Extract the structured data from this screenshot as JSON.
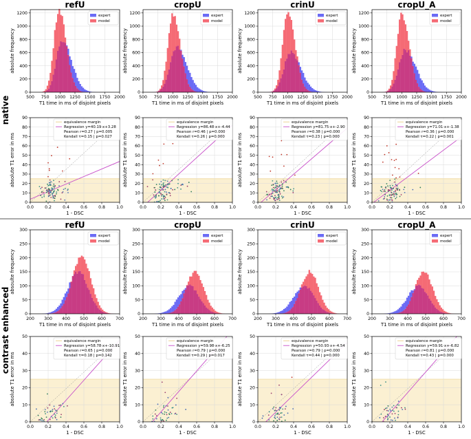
{
  "row_labels": [
    "native",
    "contrast enhanced"
  ],
  "colors": {
    "expert": "#6b6bf5",
    "model": "#f56b75",
    "overlap": "#c83c84",
    "margin": "#fbf0d2",
    "margin_line": "#e8c97a",
    "regression": "#c84fc9",
    "identity": "#8d8d8d",
    "grid": "#d9d9d9"
  },
  "chart_data": [
    {
      "type": "bar",
      "title": "refU",
      "panel": "native-hist",
      "xlabel": "T1 time in ms of disjoint pixels",
      "ylabel": "absolute frequency",
      "xlim": [
        500,
        2000
      ],
      "ylim": [
        0,
        1250
      ],
      "xticks": [
        500,
        750,
        1000,
        1250,
        1500,
        1750,
        2000
      ],
      "yticks": [
        0,
        200,
        400,
        600,
        800,
        1000,
        1200
      ],
      "legend": [
        "expert",
        "model"
      ],
      "peak": 1000,
      "series": [
        {
          "name": "expert",
          "peak": 800,
          "center": 1030,
          "sigma_left": 95,
          "sigma_right": 160
        },
        {
          "name": "model",
          "peak": 1230,
          "center": 980,
          "sigma_left": 85,
          "sigma_right": 125
        }
      ]
    },
    {
      "type": "bar",
      "title": "cropU",
      "panel": "native-hist",
      "xlabel": "T1 time in ms of disjoint pixels",
      "ylabel": "absolute frequency",
      "xlim": [
        500,
        2000
      ],
      "ylim": [
        0,
        1250
      ],
      "xticks": [
        500,
        750,
        1000,
        1250,
        1500,
        1750,
        2000
      ],
      "yticks": [
        0,
        200,
        400,
        600,
        800,
        1000,
        1200
      ],
      "legend": [
        "expert",
        "model"
      ],
      "series": [
        {
          "name": "expert",
          "peak": 680,
          "center": 1060,
          "sigma_left": 110,
          "sigma_right": 170
        },
        {
          "name": "model",
          "peak": 1160,
          "center": 1000,
          "sigma_left": 85,
          "sigma_right": 125
        }
      ]
    },
    {
      "type": "bar",
      "title": "crinU",
      "panel": "native-hist",
      "xlabel": "T1 time in ms of disjoint pixels",
      "ylabel": "absolute frequency",
      "xlim": [
        500,
        2000
      ],
      "ylim": [
        0,
        1250
      ],
      "xticks": [
        500,
        750,
        1000,
        1250,
        1500,
        1750,
        2000
      ],
      "yticks": [
        0,
        200,
        400,
        600,
        800,
        1000,
        1200
      ],
      "legend": [
        "expert",
        "model"
      ],
      "series": [
        {
          "name": "expert",
          "peak": 610,
          "center": 1050,
          "sigma_left": 110,
          "sigma_right": 170
        },
        {
          "name": "model",
          "peak": 1210,
          "center": 1000,
          "sigma_left": 85,
          "sigma_right": 125
        }
      ]
    },
    {
      "type": "bar",
      "title": "cropU_A",
      "panel": "native-hist",
      "xlabel": "T1 time in ms of disjoint pixels",
      "ylabel": "absolute frequency",
      "xlim": [
        500,
        2000
      ],
      "ylim": [
        0,
        1250
      ],
      "xticks": [
        500,
        750,
        1000,
        1250,
        1500,
        1750,
        2000
      ],
      "yticks": [
        0,
        200,
        400,
        600,
        800,
        1000,
        1200
      ],
      "legend": [
        "expert",
        "model"
      ],
      "series": [
        {
          "name": "expert",
          "peak": 650,
          "center": 1060,
          "sigma_left": 110,
          "sigma_right": 170
        },
        {
          "name": "model",
          "peak": 1190,
          "center": 1000,
          "sigma_left": 85,
          "sigma_right": 125
        }
      ]
    },
    {
      "type": "scatter",
      "title": "refU",
      "panel": "native-scatter",
      "xlabel": "1 - DSC",
      "ylabel": "absolute T1 error in ms",
      "xlim": [
        0,
        1
      ],
      "ylim": [
        0,
        90
      ],
      "xticks": [
        0.0,
        0.2,
        0.4,
        0.6,
        0.8,
        1.0
      ],
      "yticks": [
        0,
        10,
        20,
        30,
        40,
        50,
        60,
        70,
        80,
        90
      ],
      "margin": 25,
      "slope": 40.19,
      "intercept": 3.28,
      "legend": [
        "equivalence margin",
        "Regression y=40.19·x+3.28",
        "Pearson r=0.27 | p=0.005",
        "Kendall τ=0.15 | p=0.027"
      ]
    },
    {
      "type": "scatter",
      "title": "cropU",
      "panel": "native-scatter",
      "xlabel": "1 - DSC",
      "ylabel": "absolute T1 error in ms",
      "xlim": [
        0,
        1
      ],
      "ylim": [
        0,
        90
      ],
      "xticks": [
        0.0,
        0.2,
        0.4,
        0.6,
        0.8,
        1.0
      ],
      "yticks": [
        0,
        10,
        20,
        30,
        40,
        50,
        60,
        70,
        80,
        90
      ],
      "margin": 25,
      "slope": 86.48,
      "intercept": -4.44,
      "legend": [
        "equivalence margin",
        "Regression y=86.48·x+-4.44",
        "Pearson r=0.46 | p=0.000",
        "Kendall τ=0.26 | p=0.000"
      ]
    },
    {
      "type": "scatter",
      "title": "crinU",
      "panel": "native-scatter",
      "xlabel": "1 - DSC",
      "ylabel": "absolute T1 error in ms",
      "xlim": [
        0,
        1
      ],
      "ylim": [
        0,
        90
      ],
      "xticks": [
        0.0,
        0.2,
        0.4,
        0.6,
        0.8,
        1.0
      ],
      "yticks": [
        0,
        10,
        20,
        30,
        40,
        50,
        60,
        70,
        80,
        90
      ],
      "margin": 25,
      "slope": 81.75,
      "intercept": -2.9,
      "legend": [
        "equivalence margin",
        "Regression y=81.75·x+-2.90",
        "Pearson r=0.38 | p=0.000",
        "Kendall τ=0.23 | p=0.000"
      ]
    },
    {
      "type": "scatter",
      "title": "cropU_A",
      "panel": "native-scatter",
      "xlabel": "1 - DSC",
      "ylabel": "absolute T1 error in ms",
      "xlim": [
        0,
        1
      ],
      "ylim": [
        0,
        90
      ],
      "xticks": [
        0.0,
        0.2,
        0.4,
        0.6,
        0.8,
        1.0
      ],
      "yticks": [
        0,
        10,
        20,
        30,
        40,
        50,
        60,
        70,
        80,
        90
      ],
      "margin": 25,
      "slope": 71.01,
      "intercept": -1.38,
      "legend": [
        "equivalence margin",
        "Regression y=71.01·x+-1.38",
        "Pearson r=0.36 | p=0.000",
        "Kendall τ=0.22 | p=0.001"
      ]
    },
    {
      "type": "bar",
      "title": "refU",
      "panel": "contrast-hist",
      "xlabel": "T1 time in ms of disjoint pixels",
      "ylabel": "absoulte frequency",
      "xlim": [
        200,
        700
      ],
      "ylim": [
        0,
        300
      ],
      "xticks": [
        200,
        300,
        400,
        500,
        600,
        700
      ],
      "yticks": [
        0,
        50,
        100,
        150,
        200,
        250,
        300
      ],
      "legend": [
        "expert",
        "model"
      ],
      "series": [
        {
          "name": "expert",
          "peak": 150,
          "center": 470,
          "sigma_left": 60,
          "sigma_right": 55
        },
        {
          "name": "model",
          "peak": 205,
          "center": 490,
          "sigma_left": 55,
          "sigma_right": 50
        }
      ]
    },
    {
      "type": "bar",
      "title": "cropU",
      "panel": "contrast-hist",
      "xlabel": "T1 time in ms of disjoint pixels",
      "ylabel": "absoulte frequency",
      "xlim": [
        200,
        700
      ],
      "ylim": [
        0,
        300
      ],
      "xticks": [
        200,
        300,
        400,
        500,
        600,
        700
      ],
      "yticks": [
        0,
        50,
        100,
        150,
        200,
        250,
        300
      ],
      "legend": [
        "expert",
        "model"
      ],
      "series": [
        {
          "name": "expert",
          "peak": 100,
          "center": 460,
          "sigma_left": 60,
          "sigma_right": 55
        },
        {
          "name": "model",
          "peak": 148,
          "center": 490,
          "sigma_left": 50,
          "sigma_right": 50
        }
      ]
    },
    {
      "type": "bar",
      "title": "crinU",
      "panel": "contrast-hist",
      "xlabel": "T1 time in ms of disjoint pixels",
      "ylabel": "absoulte frequency",
      "xlim": [
        200,
        700
      ],
      "ylim": [
        0,
        300
      ],
      "xticks": [
        200,
        300,
        400,
        500,
        600,
        700
      ],
      "yticks": [
        0,
        50,
        100,
        150,
        200,
        250,
        300
      ],
      "legend": [
        "expert",
        "model"
      ],
      "series": [
        {
          "name": "expert",
          "peak": 100,
          "center": 460,
          "sigma_left": 60,
          "sigma_right": 55
        },
        {
          "name": "model",
          "peak": 150,
          "center": 490,
          "sigma_left": 50,
          "sigma_right": 50
        }
      ]
    },
    {
      "type": "bar",
      "title": "cropU_A",
      "panel": "contrast-hist",
      "xlabel": "T1 time in ms of disjoint pixels",
      "ylabel": "absoulte frequency",
      "xlim": [
        200,
        700
      ],
      "ylim": [
        0,
        300
      ],
      "xticks": [
        200,
        300,
        400,
        500,
        600,
        700
      ],
      "yticks": [
        0,
        50,
        100,
        150,
        200,
        250,
        300
      ],
      "legend": [
        "expert",
        "model"
      ],
      "series": [
        {
          "name": "expert",
          "peak": 100,
          "center": 460,
          "sigma_left": 60,
          "sigma_right": 55
        },
        {
          "name": "model",
          "peak": 150,
          "center": 490,
          "sigma_left": 50,
          "sigma_right": 50
        }
      ]
    },
    {
      "type": "scatter",
      "title": "refU",
      "panel": "contrast-scatter",
      "xlabel": "1 - DSC",
      "ylabel": "absolute T1 error in ms",
      "xlim": [
        0,
        1
      ],
      "ylim": [
        0,
        50
      ],
      "xticks": [
        0.0,
        0.2,
        0.4,
        0.6,
        0.8,
        1.0
      ],
      "yticks": [
        0,
        10,
        20,
        30,
        40,
        50
      ],
      "margin": 25,
      "slope": 58.78,
      "intercept": -10.91,
      "legend": [
        "equivalence margin",
        "Regression y=58.78·x+-10.91",
        "Pearson r=0.65 | p=0.000",
        "Kendall τ=0.18 | p=0.142"
      ]
    },
    {
      "type": "scatter",
      "title": "cropU",
      "panel": "contrast-scatter",
      "xlabel": "1 - DSC",
      "ylabel": "absolute T1 error in ms",
      "xlim": [
        0,
        1
      ],
      "ylim": [
        0,
        50
      ],
      "xticks": [
        0.0,
        0.2,
        0.4,
        0.6,
        0.8,
        1.0
      ],
      "yticks": [
        0,
        10,
        20,
        30,
        40,
        50
      ],
      "margin": 25,
      "slope": 59.98,
      "intercept": -6.25,
      "legend": [
        "equivalence margin",
        "Regression y=59.98·x+-6.25",
        "Pearson r=0.79 | p=0.000",
        "Kendall τ=0.29 | p=0.017"
      ]
    },
    {
      "type": "scatter",
      "title": "crinU",
      "panel": "contrast-scatter",
      "xlabel": "1 - DSC",
      "ylabel": "absolute T1 error in ms",
      "xlim": [
        0,
        1
      ],
      "ylim": [
        0,
        50
      ],
      "xticks": [
        0.0,
        0.2,
        0.4,
        0.6,
        0.8,
        1.0
      ],
      "yticks": [
        0,
        10,
        20,
        30,
        40,
        50
      ],
      "margin": 25,
      "slope": 50.93,
      "intercept": -4.54,
      "legend": [
        "equivalence margin",
        "Regression y=50.93·x+-4.54",
        "Pearson r=0.79 | p=0.000",
        "Kendall τ=0.44 | p=0.000"
      ]
    },
    {
      "type": "scatter",
      "title": "cropU_A",
      "panel": "contrast-scatter",
      "xlabel": "1 - DSC",
      "ylabel": "absolute T1 error in ms",
      "xlim": [
        0,
        1
      ],
      "ylim": [
        0,
        50
      ],
      "xticks": [
        0.0,
        0.2,
        0.4,
        0.6,
        0.8,
        1.0
      ],
      "yticks": [
        0,
        10,
        20,
        30,
        40,
        50
      ],
      "margin": 25,
      "slope": 59.91,
      "intercept": -6.82,
      "legend": [
        "equivalence margin",
        "Regression y=59.91·x+-6.82",
        "Pearson r=0.81 | p=0.000",
        "Kendall τ=0.43 | p=0.000"
      ]
    }
  ]
}
